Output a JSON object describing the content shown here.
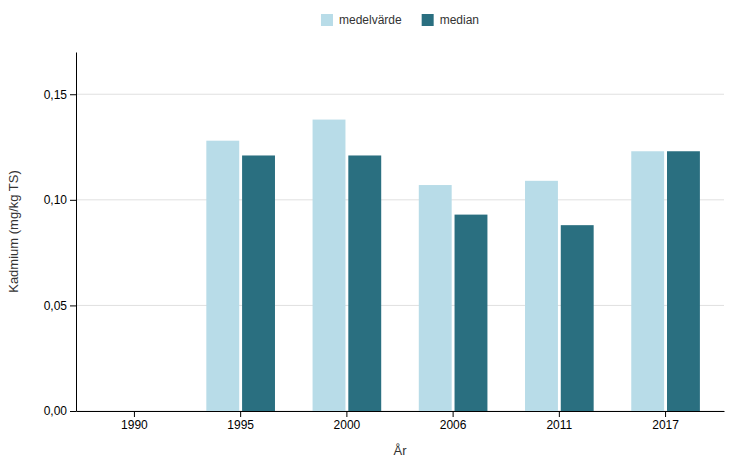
{
  "chart_data": {
    "type": "bar",
    "x_label": "År",
    "y_label": "Kadmium (mg/kg TS)",
    "categories": [
      "1990",
      "1995",
      "2000",
      "2006",
      "2011",
      "2017"
    ],
    "series": [
      {
        "name": "medelvärde",
        "color": "#b8dce8",
        "values": [
          null,
          0.128,
          0.138,
          0.107,
          0.109,
          0.123
        ]
      },
      {
        "name": "median",
        "color": "#2a6f80",
        "values": [
          null,
          0.121,
          0.121,
          0.093,
          0.088,
          0.123
        ]
      }
    ],
    "ylim": [
      0,
      0.17
    ],
    "yticks": [
      {
        "value": 0.0,
        "label": "0,00"
      },
      {
        "value": 0.05,
        "label": "0,05"
      },
      {
        "value": 0.1,
        "label": "0,10"
      },
      {
        "value": 0.15,
        "label": "0,15"
      }
    ],
    "grid": true,
    "legend": "top"
  }
}
